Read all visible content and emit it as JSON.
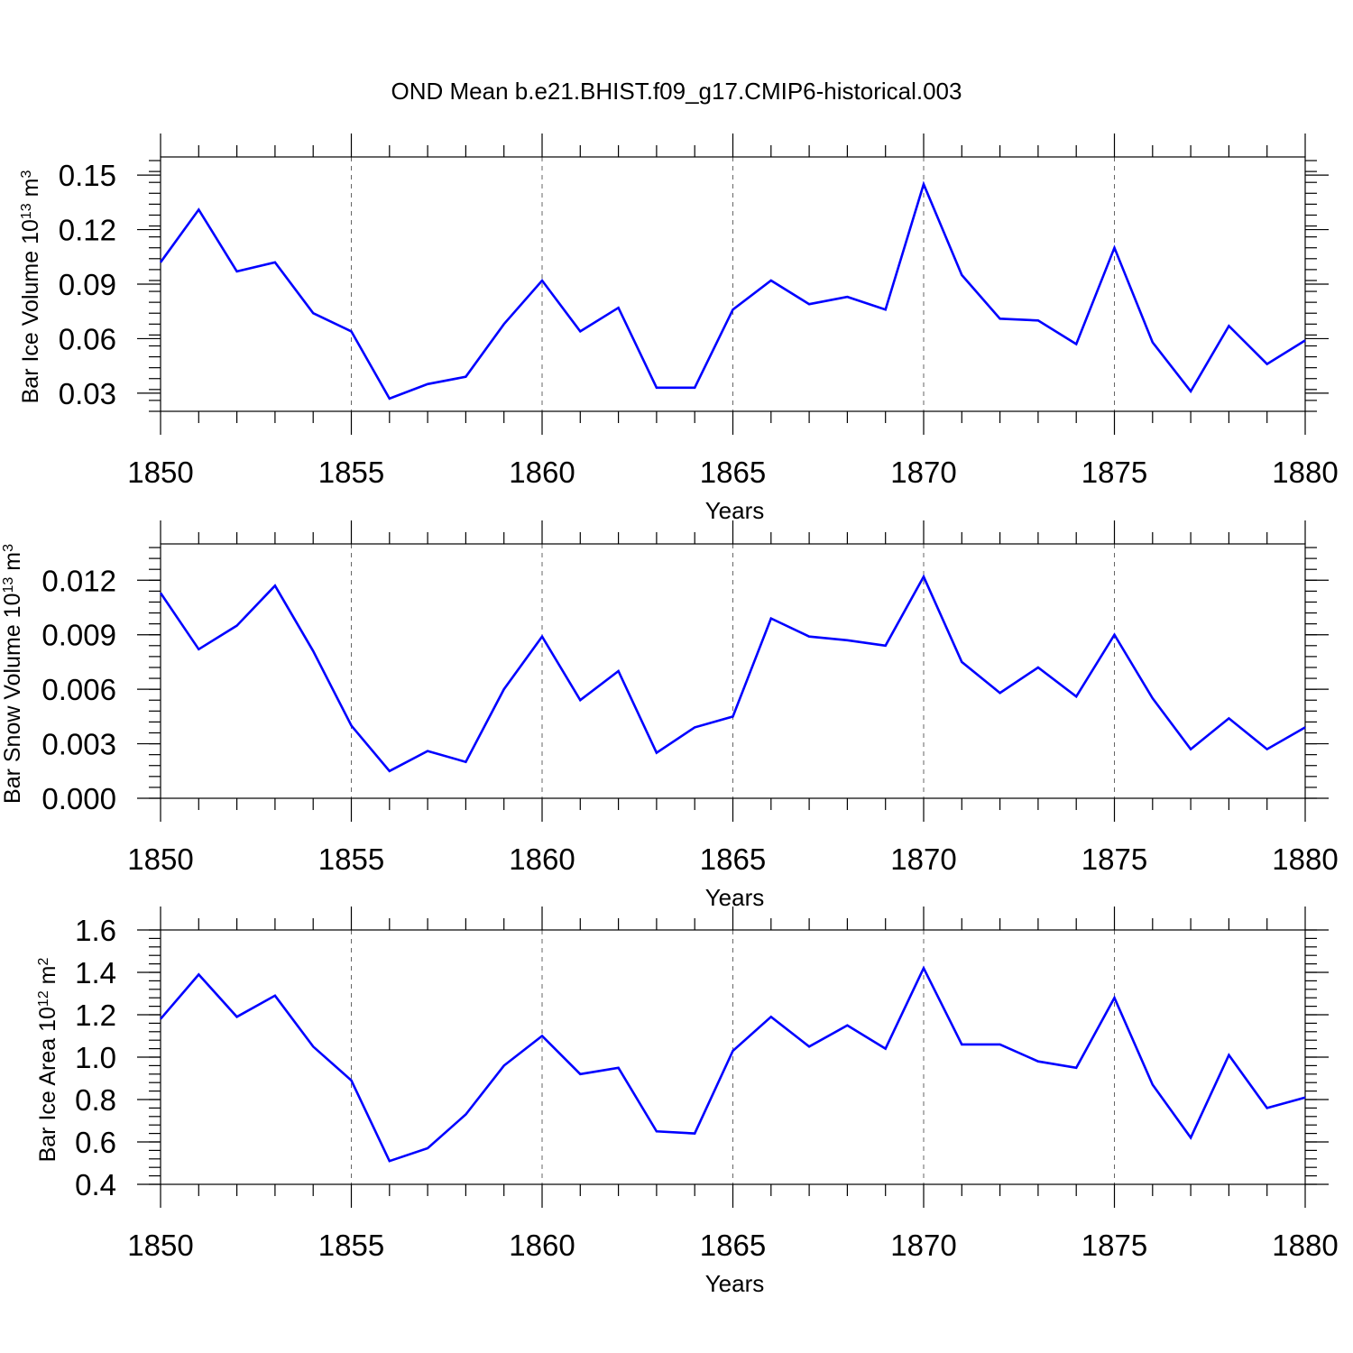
{
  "title": "OND Mean b.e21.BHIST.f09_g17.CMIP6-historical.003",
  "chart_data": [
    {
      "type": "line",
      "title": "OND Mean b.e21.BHIST.f09_g17.CMIP6-historical.003",
      "xlabel": "Years",
      "ylabel": {
        "base": "Bar Ice Volume 10",
        "sup1": "13",
        "mid": " m",
        "sup2": "3"
      },
      "xlim": [
        1850,
        1880
      ],
      "ylim": [
        0.02,
        0.16
      ],
      "x_ticks": [
        1850,
        1855,
        1860,
        1865,
        1870,
        1875,
        1880
      ],
      "x_tick_labels": [
        "1850",
        "1855",
        "1860",
        "1865",
        "1870",
        "1875",
        "1880"
      ],
      "y_ticks": [
        0.03,
        0.06,
        0.09,
        0.12,
        0.15
      ],
      "y_tick_labels": [
        "0.03",
        "0.06",
        "0.09",
        "0.12",
        "0.15"
      ],
      "y_minor_step": 0.006,
      "grid": "vertical dashed at major x ticks",
      "color": "#0000ff",
      "x": [
        1850,
        1851,
        1852,
        1853,
        1854,
        1855,
        1856,
        1857,
        1858,
        1859,
        1860,
        1861,
        1862,
        1863,
        1864,
        1865,
        1866,
        1867,
        1868,
        1869,
        1870,
        1871,
        1872,
        1873,
        1874,
        1875,
        1876,
        1877,
        1878,
        1879,
        1880
      ],
      "values": [
        0.102,
        0.131,
        0.097,
        0.102,
        0.074,
        0.064,
        0.027,
        0.035,
        0.039,
        0.068,
        0.092,
        0.064,
        0.077,
        0.033,
        0.033,
        0.076,
        0.092,
        0.079,
        0.083,
        0.076,
        0.145,
        0.095,
        0.071,
        0.07,
        0.057,
        0.11,
        0.058,
        0.031,
        0.067,
        0.046,
        0.059
      ]
    },
    {
      "type": "line",
      "xlabel": "Years",
      "ylabel": {
        "base": "Bar Snow Volume 10",
        "sup1": "13",
        "mid": " m",
        "sup2": "3"
      },
      "xlim": [
        1850,
        1880
      ],
      "ylim": [
        0.0,
        0.014
      ],
      "x_ticks": [
        1850,
        1855,
        1860,
        1865,
        1870,
        1875,
        1880
      ],
      "x_tick_labels": [
        "1850",
        "1855",
        "1860",
        "1865",
        "1870",
        "1875",
        "1880"
      ],
      "y_ticks": [
        0.0,
        0.003,
        0.006,
        0.009,
        0.012
      ],
      "y_tick_labels": [
        "0.000",
        "0.003",
        "0.006",
        "0.009",
        "0.012"
      ],
      "y_minor_step": 0.0006,
      "grid": "vertical dashed at major x ticks",
      "color": "#0000ff",
      "x": [
        1850,
        1851,
        1852,
        1853,
        1854,
        1855,
        1856,
        1857,
        1858,
        1859,
        1860,
        1861,
        1862,
        1863,
        1864,
        1865,
        1866,
        1867,
        1868,
        1869,
        1870,
        1871,
        1872,
        1873,
        1874,
        1875,
        1876,
        1877,
        1878,
        1879,
        1880
      ],
      "values": [
        0.0113,
        0.0082,
        0.0095,
        0.0117,
        0.0081,
        0.004,
        0.0015,
        0.0026,
        0.002,
        0.006,
        0.0089,
        0.0054,
        0.007,
        0.0025,
        0.0039,
        0.0045,
        0.0099,
        0.0089,
        0.0087,
        0.0084,
        0.0122,
        0.0075,
        0.0058,
        0.0072,
        0.0056,
        0.009,
        0.0055,
        0.0027,
        0.0044,
        0.0027,
        0.0039
      ]
    },
    {
      "type": "line",
      "xlabel": "Years",
      "ylabel": {
        "base": "Bar Ice Area 10",
        "sup1": "12",
        "mid": " m",
        "sup2": "2"
      },
      "xlim": [
        1850,
        1880
      ],
      "ylim": [
        0.4,
        1.6
      ],
      "x_ticks": [
        1850,
        1855,
        1860,
        1865,
        1870,
        1875,
        1880
      ],
      "x_tick_labels": [
        "1850",
        "1855",
        "1860",
        "1865",
        "1870",
        "1875",
        "1880"
      ],
      "y_ticks": [
        0.4,
        0.6,
        0.8,
        1.0,
        1.2,
        1.4,
        1.6
      ],
      "y_tick_labels": [
        "0.4",
        "0.6",
        "0.8",
        "1.0",
        "1.2",
        "1.4",
        "1.6"
      ],
      "y_minor_step": 0.04,
      "grid": "vertical dashed at major x ticks",
      "color": "#0000ff",
      "x": [
        1850,
        1851,
        1852,
        1853,
        1854,
        1855,
        1856,
        1857,
        1858,
        1859,
        1860,
        1861,
        1862,
        1863,
        1864,
        1865,
        1866,
        1867,
        1868,
        1869,
        1870,
        1871,
        1872,
        1873,
        1874,
        1875,
        1876,
        1877,
        1878,
        1879,
        1880
      ],
      "values": [
        1.18,
        1.39,
        1.19,
        1.29,
        1.05,
        0.89,
        0.51,
        0.57,
        0.73,
        0.96,
        1.1,
        0.92,
        0.95,
        0.65,
        0.64,
        1.03,
        1.19,
        1.05,
        1.15,
        1.04,
        1.42,
        1.06,
        1.06,
        0.98,
        0.95,
        1.28,
        0.87,
        0.62,
        1.01,
        0.76,
        0.81
      ]
    }
  ]
}
